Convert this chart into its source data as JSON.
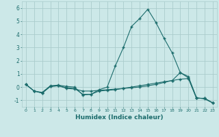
{
  "xlabel": "Humidex (Indice chaleur)",
  "ylabel": "",
  "xlim": [
    -0.5,
    23.5
  ],
  "ylim": [
    -1.5,
    6.5
  ],
  "yticks": [
    -1,
    0,
    1,
    2,
    3,
    4,
    5,
    6
  ],
  "xticks": [
    0,
    1,
    2,
    3,
    4,
    5,
    6,
    7,
    8,
    9,
    10,
    11,
    12,
    13,
    14,
    15,
    16,
    17,
    18,
    19,
    20,
    21,
    22,
    23
  ],
  "bg_color": "#cce8e8",
  "grid_color": "#aacccc",
  "line_color": "#1a6b6b",
  "line1_y": [
    0.2,
    -0.3,
    -0.4,
    0.1,
    0.15,
    0.05,
    0.0,
    -0.6,
    -0.55,
    -0.2,
    0.0,
    1.6,
    3.0,
    4.6,
    5.2,
    5.9,
    4.9,
    3.7,
    2.6,
    1.1,
    0.8,
    -0.8,
    -0.9,
    -1.2
  ],
  "line2_y": [
    0.2,
    -0.3,
    -0.45,
    0.05,
    0.1,
    -0.1,
    -0.15,
    -0.3,
    -0.3,
    -0.25,
    -0.2,
    -0.15,
    -0.1,
    -0.05,
    0.0,
    0.1,
    0.2,
    0.35,
    0.5,
    1.1,
    0.7,
    -0.85,
    -0.85,
    -1.2
  ],
  "line3_y": [
    0.2,
    -0.3,
    -0.45,
    0.05,
    0.1,
    -0.05,
    -0.1,
    -0.55,
    -0.55,
    -0.3,
    -0.25,
    -0.2,
    -0.1,
    0.0,
    0.1,
    0.2,
    0.3,
    0.4,
    0.5,
    0.6,
    0.65,
    -0.85,
    -0.85,
    -1.2
  ]
}
